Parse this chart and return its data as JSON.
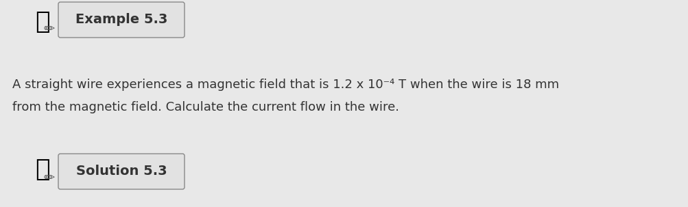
{
  "background_color": "#c8c8c8",
  "page_color": "#e8e8e8",
  "example_label": "Example 5.3",
  "solution_label": "Solution 5.3",
  "body_line1": "A straight wire experiences a magnetic field that is 1.2 x 10⁻⁴ T when the wire is 18 mm",
  "body_line2": "from the magnetic field. Calculate the current flow in the wire.",
  "text_color": "#333333",
  "box_facecolor": "#e0e0e0",
  "box_edgecolor": "#888888",
  "label_fontsize": 14,
  "body_fontsize": 13,
  "icon_fontsize": 28
}
